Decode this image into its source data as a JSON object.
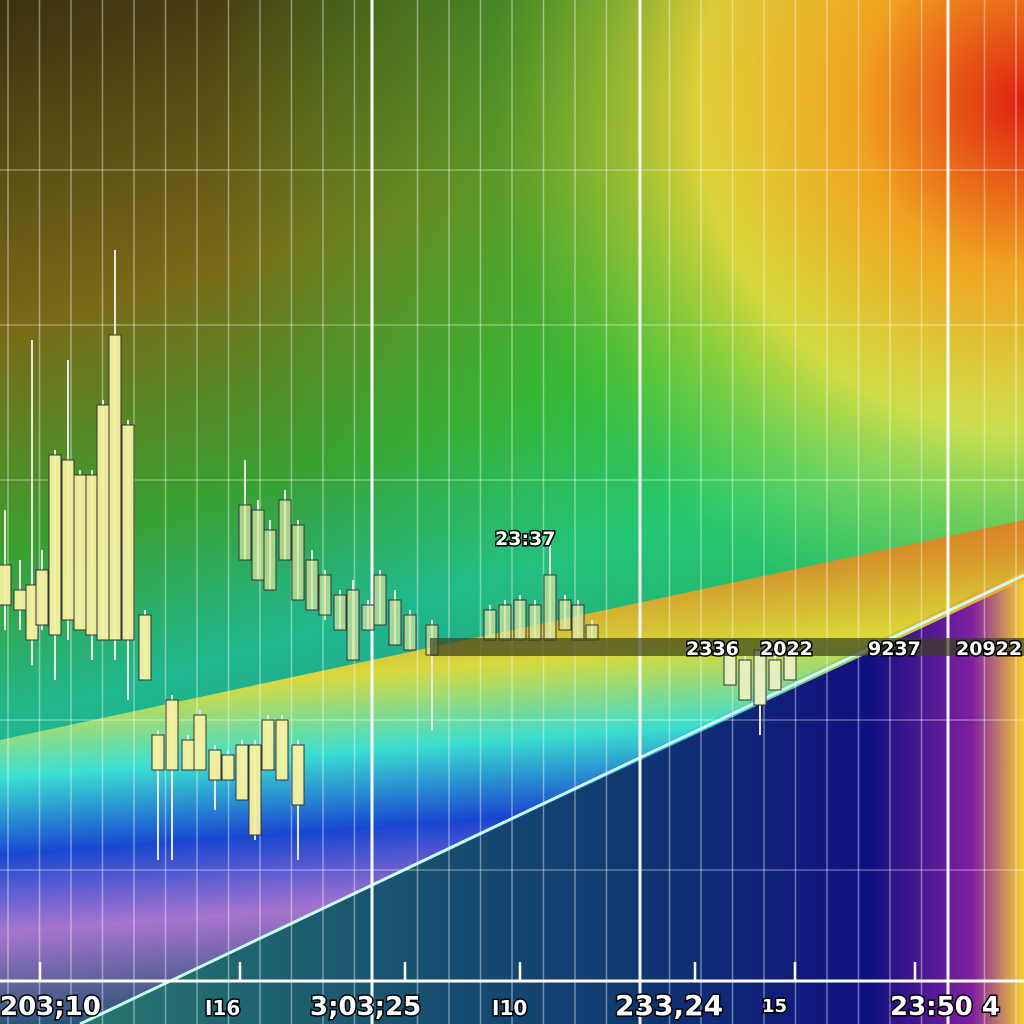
{
  "chart_data": {
    "type": "candlestick",
    "title": "",
    "xlabel": "",
    "ylabel": "",
    "ylim": [
      0,
      100
    ],
    "grid": true,
    "x_tick_labels": [
      "203;10",
      "I16",
      "3;03;25",
      "I10",
      "233,24",
      "15",
      "23:50 4"
    ],
    "annotations": [
      "23:37",
      "2336",
      "2022",
      "9237",
      "20922"
    ],
    "colors": {
      "candle": "#f4f0a0",
      "candle_faded": "#d8e8a0",
      "axis": "#ffffff",
      "band_red": "#e8341c",
      "band_yellow": "#f8e030",
      "band_blue": "#1838e0"
    },
    "candles": [
      {
        "l": 37,
        "b": 39.5,
        "t": 43.5,
        "h": 49
      },
      {
        "l": 37,
        "b": 39,
        "t": 41,
        "h": 44
      },
      {
        "l": 33.5,
        "b": 36,
        "t": 41.5,
        "h": 66
      },
      {
        "l": 37,
        "b": 37.5,
        "t": 43,
        "h": 45
      },
      {
        "l": 32,
        "b": 36.5,
        "t": 54.5,
        "h": 55
      },
      {
        "l": 36,
        "b": 38,
        "t": 54,
        "h": 64
      },
      {
        "l": 37,
        "b": 37,
        "t": 52.5,
        "h": 53
      },
      {
        "l": 34,
        "b": 36.5,
        "t": 52.5,
        "h": 53
      },
      {
        "l": 36,
        "b": 36,
        "t": 59.5,
        "h": 60
      },
      {
        "l": 34,
        "b": 36,
        "t": 66.5,
        "h": 75
      },
      {
        "l": 30,
        "b": 36,
        "t": 57.5,
        "h": 58
      },
      {
        "l": 32,
        "b": 32,
        "t": 38.5,
        "h": 39
      },
      {
        "l": 14,
        "b": 23,
        "t": 26.5,
        "h": 27
      },
      {
        "l": 14,
        "b": 23,
        "t": 30,
        "h": 30.5
      },
      {
        "l": 23,
        "b": 23,
        "t": 26,
        "h": 26.5
      },
      {
        "l": 23,
        "b": 23,
        "t": 28.5,
        "h": 29
      },
      {
        "l": 19,
        "b": 22,
        "t": 25,
        "h": 25.5
      },
      {
        "l": 22,
        "b": 22,
        "t": 24.5,
        "h": 25
      },
      {
        "l": 20,
        "b": 20,
        "t": 25.5,
        "h": 26
      },
      {
        "l": 16,
        "b": 16.5,
        "t": 25.5,
        "h": 26
      },
      {
        "l": 23,
        "b": 23,
        "t": 28,
        "h": 28.5
      },
      {
        "l": 22,
        "b": 22,
        "t": 28,
        "h": 28.5
      },
      {
        "l": 14,
        "b": 19.5,
        "t": 25.5,
        "h": 26
      },
      {
        "l": 44,
        "b": 44,
        "t": 49.5,
        "h": 54
      },
      {
        "l": 42,
        "b": 42,
        "t": 49,
        "h": 50
      },
      {
        "l": 41,
        "b": 41,
        "t": 47,
        "h": 48
      },
      {
        "l": 44,
        "b": 44,
        "t": 50,
        "h": 51
      },
      {
        "l": 40,
        "b": 40,
        "t": 47.5,
        "h": 48
      },
      {
        "l": 39,
        "b": 39,
        "t": 44,
        "h": 45
      },
      {
        "l": 38,
        "b": 38.5,
        "t": 42.5,
        "h": 43
      },
      {
        "l": 37,
        "b": 37,
        "t": 40.5,
        "h": 41
      },
      {
        "l": 34,
        "b": 34,
        "t": 41,
        "h": 42
      },
      {
        "l": 37,
        "b": 37,
        "t": 39.5,
        "h": 40
      },
      {
        "l": 37.5,
        "b": 37.5,
        "t": 42.5,
        "h": 43
      },
      {
        "l": 35.5,
        "b": 35.5,
        "t": 40,
        "h": 41
      },
      {
        "l": 35,
        "b": 35,
        "t": 38.5,
        "h": 39
      },
      {
        "l": 27,
        "b": 34.5,
        "t": 37.5,
        "h": 38
      },
      {
        "l": 36,
        "b": 36,
        "t": 39,
        "h": 39.5
      },
      {
        "l": 36,
        "b": 36,
        "t": 39.5,
        "h": 40
      },
      {
        "l": 36,
        "b": 36,
        "t": 40,
        "h": 40.5
      },
      {
        "l": 36,
        "b": 36,
        "t": 39.5,
        "h": 40
      },
      {
        "l": 36,
        "b": 36,
        "t": 42.5,
        "h": 45.5
      },
      {
        "l": 37,
        "b": 37,
        "t": 40,
        "h": 40.5
      },
      {
        "l": 36,
        "b": 36,
        "t": 39.5,
        "h": 40
      },
      {
        "l": 36,
        "b": 36,
        "t": 37.5,
        "h": 38
      },
      {
        "l": 31.5,
        "b": 31.5,
        "t": 34.5,
        "h": 35
      },
      {
        "l": 30,
        "b": 30,
        "t": 34,
        "h": 34.5
      },
      {
        "l": 26.5,
        "b": 29.5,
        "t": 35,
        "h": 35.5
      },
      {
        "l": 31,
        "b": 31,
        "t": 34,
        "h": 34.5
      },
      {
        "l": 32,
        "b": 32,
        "t": 34.5,
        "h": 35
      }
    ]
  }
}
